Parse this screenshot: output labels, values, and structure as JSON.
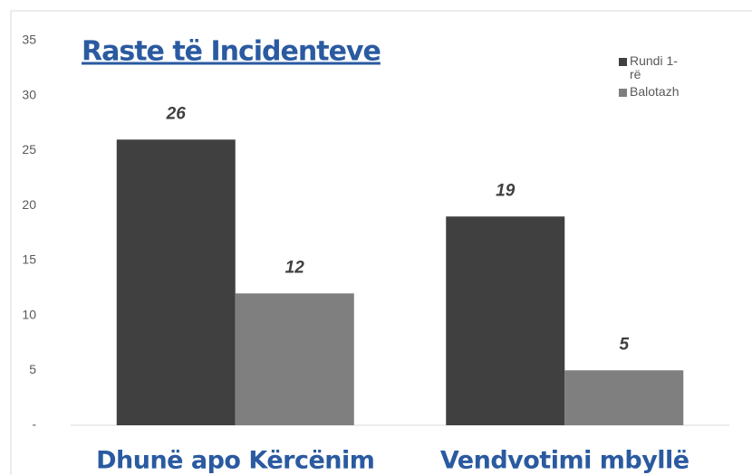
{
  "chart_data": {
    "type": "bar",
    "title": "Raste të Incidenteve",
    "categories": [
      "Dhunë apo Kërcënim",
      "Vendvotimi mbyllë"
    ],
    "series": [
      {
        "name": "Rundi 1-rë",
        "color": "#404040",
        "values": [
          26,
          19
        ]
      },
      {
        "name": "Balotazh",
        "color": "#7f7f7f",
        "values": [
          12,
          5
        ]
      }
    ],
    "ylim": [
      0,
      35
    ],
    "yticks": [
      {
        "value": 0,
        "label": "-"
      },
      5,
      10,
      15,
      20,
      25,
      30,
      35
    ],
    "legend": "top-right"
  }
}
